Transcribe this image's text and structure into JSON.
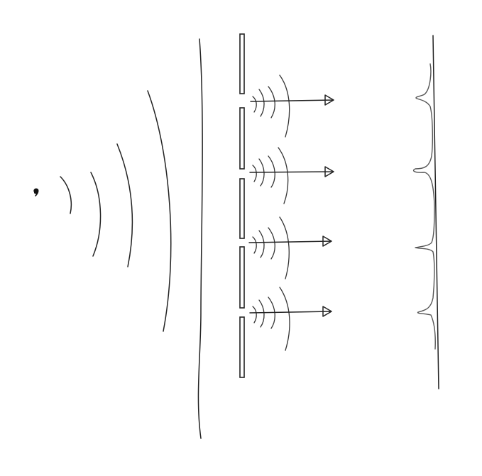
{
  "diagram": {
    "type": "wave-diffraction-sketch",
    "source": {
      "icon": "point-source"
    },
    "incoming_wavefronts": {
      "count": 5
    },
    "barrier": {
      "segments": 5,
      "slits": 4
    },
    "outgoing_waves": {
      "per_slit_arcs": 4,
      "arrow_icon": "arrow-right"
    },
    "screen": {
      "peaks": 4
    },
    "colors": {
      "ink": "#222222",
      "background": "#ffffff"
    }
  }
}
